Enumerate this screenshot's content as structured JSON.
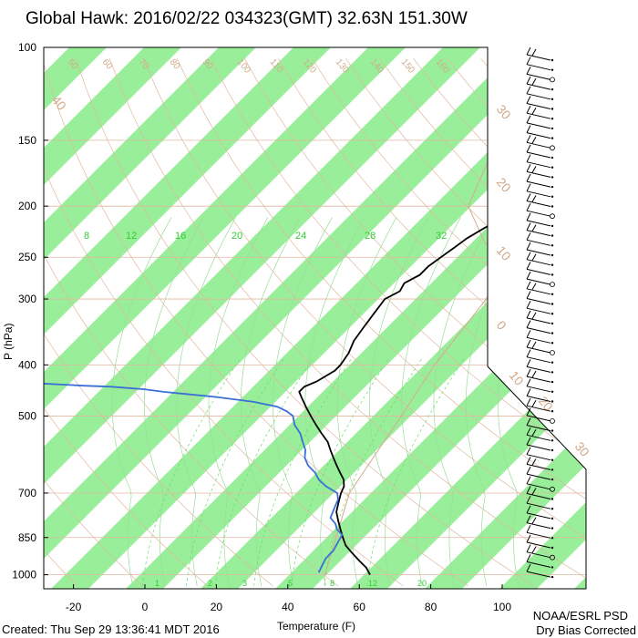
{
  "header": {
    "title": "Global Hawk: 2016/02/22 034323(GMT) 32.63N 151.30W"
  },
  "footer": {
    "created": "Created: Thu Sep 29 13:36:41 MDT 2016",
    "org": "NOAA/ESRL PSD",
    "note": "Dry Bias Corrected"
  },
  "colors": {
    "isotherm_band": "#99ee99",
    "temperature": "#000000",
    "dewpoint": "#3b6fd8",
    "dry_adiabat": "#e0b8a0",
    "mixing_ratio": "#66dd66",
    "moist_adiabat": "#99dd99",
    "label_tan": "#d2a98a",
    "label_green": "#33cc33"
  },
  "chart_data": {
    "type": "skew-t",
    "title": "Global Hawk: 2016/02/22 034323(GMT) 32.63N 151.30W",
    "xlabel": "Temperature (F)",
    "ylabel": "P (hPa)",
    "xlim": [
      -28,
      126
    ],
    "ylim": [
      1030,
      100
    ],
    "yscale": "log",
    "x_ticks": [
      -20,
      0,
      20,
      40,
      60,
      80,
      100
    ],
    "y_ticks": [
      100,
      150,
      200,
      250,
      300,
      400,
      500,
      700,
      850,
      1000
    ],
    "isotherm_labels_tan": [
      "50",
      "60",
      "70",
      "80",
      "90",
      "100",
      "110",
      "120",
      "130",
      "140",
      "150",
      "160",
      "30",
      "20",
      "10",
      "0",
      "10",
      "20",
      "30",
      "40"
    ],
    "mixing_ratio_labels_top": [
      "8",
      "12",
      "16",
      "20",
      "24",
      "28",
      "32"
    ],
    "mixing_ratio_labels_bottom": [
      "1",
      "2",
      "3",
      "5",
      "8",
      "12",
      "20"
    ],
    "temperature": {
      "name": "Temperature",
      "p": [
        1000,
        970,
        940,
        910,
        880,
        850,
        820,
        790,
        760,
        730,
        700,
        680,
        660,
        640,
        620,
        600,
        580,
        560,
        540,
        520,
        500,
        480,
        460,
        450,
        440,
        430,
        420,
        410,
        400,
        380,
        360,
        340,
        320,
        300,
        290,
        280,
        270,
        260,
        250,
        240,
        230,
        220,
        210,
        200,
        190,
        180,
        170,
        160,
        150,
        140,
        130,
        120,
        110,
        100
      ],
      "t": [
        63,
        60,
        56,
        52,
        48,
        45,
        42,
        39,
        36,
        34,
        32,
        31,
        29,
        26,
        23,
        20,
        17,
        14,
        10,
        6,
        2,
        -2,
        -6,
        -8,
        -8,
        -6,
        -5,
        -4,
        -4,
        -5,
        -7,
        -8,
        -9,
        -10,
        -8,
        -9,
        -7,
        -7,
        -6,
        -5,
        -4,
        -2,
        1,
        2,
        3,
        4,
        5,
        6,
        7,
        8,
        8,
        9,
        10,
        10
      ]
    },
    "dewpoint": {
      "name": "Dewpoint",
      "p": [
        990,
        960,
        930,
        900,
        870,
        840,
        820,
        800,
        780,
        760,
        740,
        720,
        700,
        680,
        660,
        640,
        620,
        600,
        580,
        560,
        540,
        520,
        500,
        490,
        480,
        470,
        460,
        455,
        450,
        445,
        440,
        438,
        436,
        434,
        432,
        430
      ],
      "t": [
        48,
        47,
        46,
        46,
        45,
        44,
        41,
        39,
        36,
        35,
        34,
        33,
        31,
        26,
        22,
        19,
        15,
        12,
        10,
        7,
        4,
        0,
        -3,
        -6,
        -10,
        -18,
        -30,
        -38,
        -46,
        -52,
        -62,
        -70,
        -76,
        -82,
        -88,
        -94
      ]
    },
    "grid": true,
    "legend": "none"
  }
}
